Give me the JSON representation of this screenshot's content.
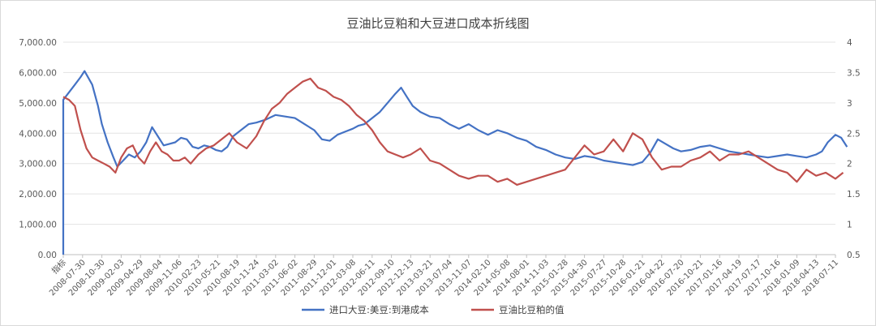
{
  "chart_data": {
    "type": "line",
    "title": "豆油比豆粕和大豆进口成本折线图",
    "xlabel": "",
    "ylabel_left": "",
    "ylabel_right": "",
    "x_ticks": [
      "指标",
      "2008-07-30",
      "2008-10-30",
      "2009-02-03",
      "2009-04-29",
      "2009-08-04",
      "2009-11-06",
      "2010-02-23",
      "2010-05-21",
      "2010-08-19",
      "2010-11-24",
      "2011-03-02",
      "2011-06-02",
      "2011-08-29",
      "2011-12-01",
      "2012-03-08",
      "2012-06-11",
      "2012-09-10",
      "2012-12-13",
      "2013-03-21",
      "2013-07-04",
      "2013-11-07",
      "2014-02-10",
      "2014-05-08",
      "2014-08-01",
      "2014-11-03",
      "2015-01-28",
      "2015-04-30",
      "2015-07-27",
      "2015-10-28",
      "2016-01-21",
      "2016-04-22",
      "2016-07-20",
      "2016-10-21",
      "2017-01-16",
      "2017-04-19",
      "2017-07-17",
      "2017-10-16",
      "2018-01-09",
      "2018-04-13",
      "2018-07-11"
    ],
    "y_left": {
      "ticks": [
        "0.00",
        "1,000.00",
        "2,000.00",
        "3,000.00",
        "4,000.00",
        "5,000.00",
        "6,000.00",
        "7,000.00"
      ],
      "min": 0,
      "max": 7000
    },
    "y_right": {
      "ticks": [
        "0.5",
        "1",
        "1.5",
        "2",
        "2.5",
        "3",
        "3.5",
        "4"
      ],
      "min": 0.5,
      "max": 4
    },
    "legend_position": "bottom",
    "grid": "horizontal",
    "series": [
      {
        "name": "进口大豆:美豆:到港成本",
        "axis": "left",
        "color": "#4472C4",
        "points": [
          [
            0,
            0
          ],
          [
            0,
            5100
          ],
          [
            0.3,
            5350
          ],
          [
            0.6,
            5600
          ],
          [
            0.9,
            5850
          ],
          [
            1.1,
            6050
          ],
          [
            1.5,
            5600
          ],
          [
            1.8,
            4900
          ],
          [
            2,
            4300
          ],
          [
            2.3,
            3700
          ],
          [
            2.6,
            3200
          ],
          [
            2.8,
            2900
          ],
          [
            3.1,
            3100
          ],
          [
            3.4,
            3300
          ],
          [
            3.7,
            3200
          ],
          [
            4,
            3400
          ],
          [
            4.3,
            3700
          ],
          [
            4.6,
            4200
          ],
          [
            4.9,
            3900
          ],
          [
            5.2,
            3600
          ],
          [
            5.5,
            3650
          ],
          [
            5.8,
            3700
          ],
          [
            6.1,
            3850
          ],
          [
            6.4,
            3800
          ],
          [
            6.7,
            3550
          ],
          [
            7,
            3500
          ],
          [
            7.3,
            3600
          ],
          [
            7.6,
            3550
          ],
          [
            7.9,
            3450
          ],
          [
            8.2,
            3400
          ],
          [
            8.5,
            3550
          ],
          [
            8.8,
            3900
          ],
          [
            9.2,
            4100
          ],
          [
            9.6,
            4300
          ],
          [
            10,
            4350
          ],
          [
            10.5,
            4450
          ],
          [
            11,
            4600
          ],
          [
            11.5,
            4550
          ],
          [
            12,
            4500
          ],
          [
            12.5,
            4300
          ],
          [
            13,
            4100
          ],
          [
            13.4,
            3800
          ],
          [
            13.8,
            3750
          ],
          [
            14.2,
            3950
          ],
          [
            14.6,
            4050
          ],
          [
            15,
            4150
          ],
          [
            15.3,
            4250
          ],
          [
            15.6,
            4300
          ],
          [
            16,
            4500
          ],
          [
            16.4,
            4700
          ],
          [
            16.8,
            5000
          ],
          [
            17.2,
            5300
          ],
          [
            17.5,
            5500
          ],
          [
            17.8,
            5200
          ],
          [
            18.1,
            4900
          ],
          [
            18.5,
            4700
          ],
          [
            19,
            4550
          ],
          [
            19.5,
            4500
          ],
          [
            20,
            4300
          ],
          [
            20.5,
            4150
          ],
          [
            21,
            4300
          ],
          [
            21.5,
            4100
          ],
          [
            22,
            3950
          ],
          [
            22.5,
            4100
          ],
          [
            23,
            4000
          ],
          [
            23.5,
            3850
          ],
          [
            24,
            3750
          ],
          [
            24.5,
            3550
          ],
          [
            25,
            3450
          ],
          [
            25.5,
            3300
          ],
          [
            26,
            3200
          ],
          [
            26.5,
            3150
          ],
          [
            27,
            3250
          ],
          [
            27.5,
            3200
          ],
          [
            28,
            3100
          ],
          [
            28.5,
            3050
          ],
          [
            29,
            3000
          ],
          [
            29.5,
            2950
          ],
          [
            30,
            3050
          ],
          [
            30.4,
            3350
          ],
          [
            30.8,
            3800
          ],
          [
            31.2,
            3650
          ],
          [
            31.6,
            3500
          ],
          [
            32,
            3400
          ],
          [
            32.5,
            3450
          ],
          [
            33,
            3550
          ],
          [
            33.5,
            3600
          ],
          [
            34,
            3500
          ],
          [
            34.5,
            3400
          ],
          [
            35,
            3350
          ],
          [
            35.5,
            3300
          ],
          [
            36,
            3250
          ],
          [
            36.5,
            3200
          ],
          [
            37,
            3250
          ],
          [
            37.5,
            3300
          ],
          [
            38,
            3250
          ],
          [
            38.5,
            3200
          ],
          [
            39,
            3300
          ],
          [
            39.3,
            3400
          ],
          [
            39.6,
            3700
          ],
          [
            40,
            3950
          ],
          [
            40.3,
            3850
          ],
          [
            40.6,
            3550
          ]
        ]
      },
      {
        "name": "豆油比豆粕的值",
        "axis": "right",
        "color": "#C0504D",
        "points": [
          [
            0,
            3.1
          ],
          [
            0.3,
            3.05
          ],
          [
            0.6,
            2.95
          ],
          [
            0.9,
            2.55
          ],
          [
            1.2,
            2.25
          ],
          [
            1.5,
            2.1
          ],
          [
            1.8,
            2.05
          ],
          [
            2.1,
            2.0
          ],
          [
            2.4,
            1.95
          ],
          [
            2.7,
            1.85
          ],
          [
            3,
            2.1
          ],
          [
            3.3,
            2.25
          ],
          [
            3.6,
            2.3
          ],
          [
            3.9,
            2.1
          ],
          [
            4.2,
            2.0
          ],
          [
            4.5,
            2.2
          ],
          [
            4.8,
            2.35
          ],
          [
            5.1,
            2.2
          ],
          [
            5.4,
            2.15
          ],
          [
            5.7,
            2.05
          ],
          [
            6,
            2.05
          ],
          [
            6.3,
            2.1
          ],
          [
            6.6,
            2.0
          ],
          [
            7,
            2.15
          ],
          [
            7.4,
            2.25
          ],
          [
            7.8,
            2.3
          ],
          [
            8.2,
            2.4
          ],
          [
            8.6,
            2.5
          ],
          [
            9,
            2.35
          ],
          [
            9.5,
            2.25
          ],
          [
            10,
            2.45
          ],
          [
            10.4,
            2.7
          ],
          [
            10.8,
            2.9
          ],
          [
            11.2,
            3.0
          ],
          [
            11.6,
            3.15
          ],
          [
            12,
            3.25
          ],
          [
            12.4,
            3.35
          ],
          [
            12.8,
            3.4
          ],
          [
            13.2,
            3.25
          ],
          [
            13.6,
            3.2
          ],
          [
            14,
            3.1
          ],
          [
            14.4,
            3.05
          ],
          [
            14.8,
            2.95
          ],
          [
            15.2,
            2.8
          ],
          [
            15.6,
            2.7
          ],
          [
            16,
            2.55
          ],
          [
            16.4,
            2.35
          ],
          [
            16.8,
            2.2
          ],
          [
            17.2,
            2.15
          ],
          [
            17.6,
            2.1
          ],
          [
            18,
            2.15
          ],
          [
            18.5,
            2.25
          ],
          [
            19,
            2.05
          ],
          [
            19.5,
            2.0
          ],
          [
            20,
            1.9
          ],
          [
            20.5,
            1.8
          ],
          [
            21,
            1.75
          ],
          [
            21.5,
            1.8
          ],
          [
            22,
            1.8
          ],
          [
            22.5,
            1.7
          ],
          [
            23,
            1.75
          ],
          [
            23.5,
            1.65
          ],
          [
            24,
            1.7
          ],
          [
            24.5,
            1.75
          ],
          [
            25,
            1.8
          ],
          [
            25.5,
            1.85
          ],
          [
            26,
            1.9
          ],
          [
            26.5,
            2.1
          ],
          [
            27,
            2.3
          ],
          [
            27.5,
            2.15
          ],
          [
            28,
            2.2
          ],
          [
            28.5,
            2.4
          ],
          [
            29,
            2.2
          ],
          [
            29.5,
            2.5
          ],
          [
            30,
            2.4
          ],
          [
            30.5,
            2.1
          ],
          [
            31,
            1.9
          ],
          [
            31.5,
            1.95
          ],
          [
            32,
            1.95
          ],
          [
            32.5,
            2.05
          ],
          [
            33,
            2.1
          ],
          [
            33.5,
            2.2
          ],
          [
            34,
            2.05
          ],
          [
            34.5,
            2.15
          ],
          [
            35,
            2.15
          ],
          [
            35.5,
            2.2
          ],
          [
            36,
            2.1
          ],
          [
            36.5,
            2.0
          ],
          [
            37,
            1.9
          ],
          [
            37.5,
            1.85
          ],
          [
            38,
            1.7
          ],
          [
            38.5,
            1.9
          ],
          [
            39,
            1.8
          ],
          [
            39.5,
            1.85
          ],
          [
            40,
            1.75
          ],
          [
            40.4,
            1.85
          ]
        ]
      }
    ]
  }
}
